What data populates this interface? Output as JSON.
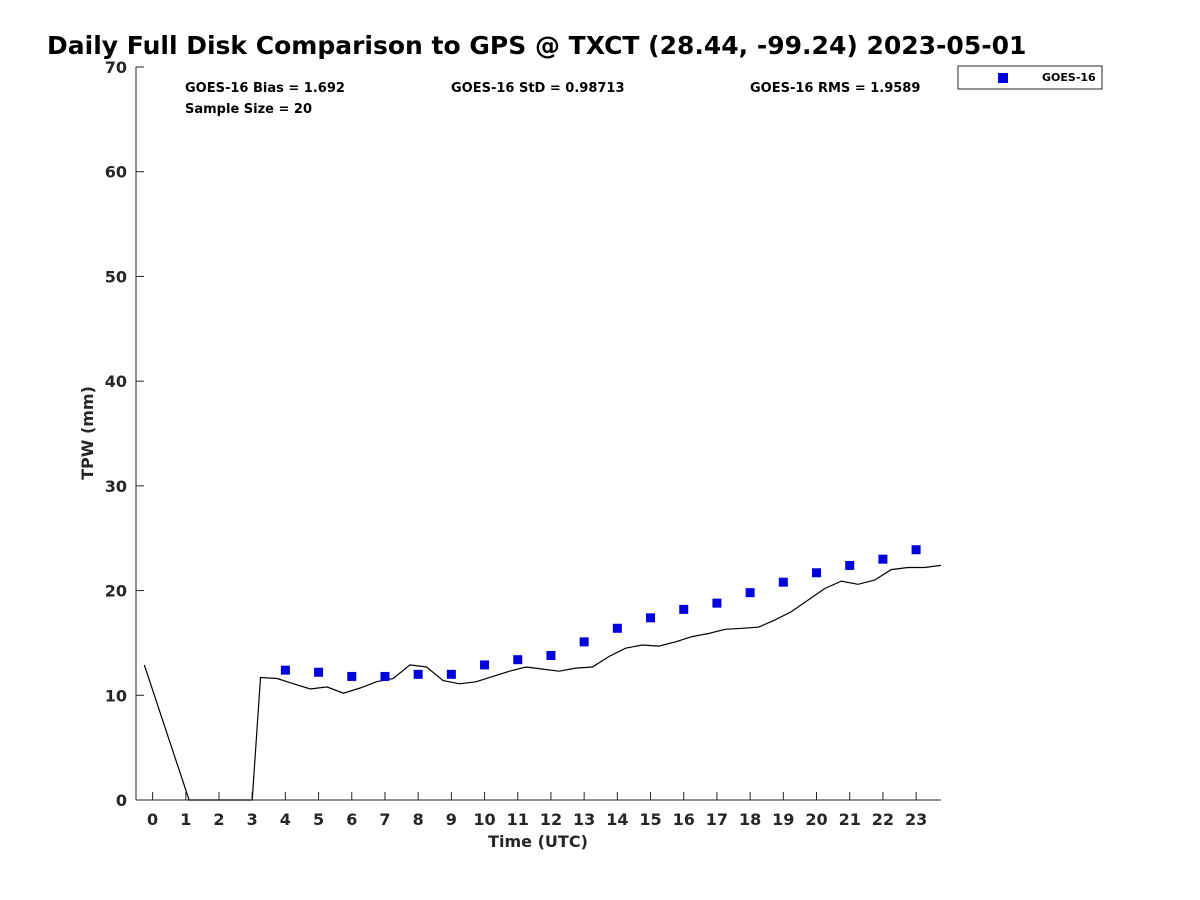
{
  "chart_data": {
    "type": "scatter",
    "title": "Daily Full Disk Comparison to GPS @ TXCT (28.44, -99.24) 2023-05-01",
    "xlabel": "Time (UTC)",
    "ylabel": "TPW (mm)",
    "xlim": [
      -0.5,
      23.75
    ],
    "ylim": [
      0,
      70
    ],
    "x_ticks": [
      "0",
      "1",
      "2",
      "3",
      "4",
      "5",
      "6",
      "7",
      "8",
      "9",
      "10",
      "11",
      "12",
      "13",
      "14",
      "15",
      "16",
      "17",
      "18",
      "19",
      "20",
      "21",
      "22",
      "23"
    ],
    "y_ticks": [
      "0",
      "10",
      "20",
      "30",
      "40",
      "50",
      "60",
      "70"
    ],
    "grid": false,
    "legend_position": "outside top-right",
    "stats": [
      {
        "text": "GOES-16 Bias = 1.692"
      },
      {
        "text": "GOES-16 StD = 0.98713"
      },
      {
        "text": "GOES-16 RMS = 1.9589"
      },
      {
        "text": "Sample Size = 20"
      }
    ],
    "series": [
      {
        "name": "GOES-16",
        "kind": "scatter",
        "marker": "square",
        "color": "#0000dd",
        "x": [
          4,
          5,
          6,
          7,
          8,
          9,
          10,
          11,
          12,
          13,
          14,
          15,
          16,
          17,
          18,
          19,
          20,
          21,
          22,
          23
        ],
        "y": [
          12.4,
          12.2,
          11.8,
          11.8,
          12.0,
          12.0,
          12.9,
          13.4,
          13.8,
          15.1,
          16.4,
          17.4,
          18.2,
          18.8,
          19.8,
          20.8,
          21.7,
          22.4,
          23.0,
          23.9
        ]
      },
      {
        "kind": "line",
        "color": "#000000",
        "x": [
          -0.25,
          1.1,
          1.5,
          2.0,
          2.5,
          3.0,
          3.25,
          3.75,
          4.25,
          4.75,
          5.25,
          5.75,
          6.25,
          6.75,
          7.25,
          7.75,
          8.25,
          8.75,
          9.25,
          9.75,
          10.25,
          10.75,
          11.25,
          11.75,
          12.25,
          12.75,
          13.25,
          13.75,
          14.25,
          14.75,
          15.25,
          15.75,
          16.25,
          16.75,
          17.25,
          17.75,
          18.25,
          18.75,
          19.25,
          19.75,
          20.25,
          20.75,
          21.25,
          21.75,
          22.25,
          22.75,
          23.25,
          23.75
        ],
        "y": [
          12.9,
          0,
          0,
          0,
          0,
          0,
          11.7,
          11.6,
          11.1,
          10.6,
          10.8,
          10.2,
          10.7,
          11.3,
          11.6,
          12.9,
          12.7,
          11.4,
          11.1,
          11.3,
          11.8,
          12.3,
          12.7,
          12.5,
          12.3,
          12.6,
          12.7,
          13.7,
          14.5,
          14.8,
          14.7,
          15.1,
          15.6,
          15.9,
          16.3,
          16.4,
          16.5,
          17.2,
          18.0,
          19.1,
          20.2,
          20.9,
          20.6,
          21.0,
          22.0,
          22.2,
          22.2,
          22.4
        ]
      }
    ]
  }
}
